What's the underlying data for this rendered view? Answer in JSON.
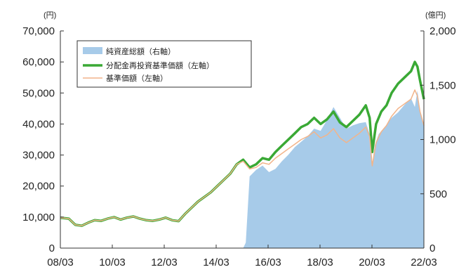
{
  "chart_data": {
    "type": "line",
    "title": "",
    "left_unit": "(円)",
    "right_unit": "(億円)",
    "left_ticks": [
      "0",
      "10,000",
      "20,000",
      "30,000",
      "40,000",
      "50,000",
      "60,000",
      "70,000"
    ],
    "right_ticks": [
      "0",
      "500",
      "1,000",
      "1,500",
      "2,000"
    ],
    "x_ticks": [
      "08/03",
      "10/03",
      "12/03",
      "14/03",
      "16/03",
      "18/03",
      "20/03",
      "22/03"
    ],
    "ylim_left": [
      0,
      70000
    ],
    "ylim_right": [
      0,
      2000
    ],
    "xlim": [
      2008.17,
      2022.25
    ],
    "legend_position": "top-left",
    "colors": {
      "net_assets": "#a7cbe9",
      "reinvested_nav": "#3aa935",
      "nav": "#f2b48a"
    },
    "series": [
      {
        "name": "純資産総額（右軸）",
        "axis": "right",
        "kind": "area",
        "x": [
          2008.17,
          2015.25,
          2015.35,
          2015.5,
          2015.75,
          2016.0,
          2016.25,
          2016.5,
          2016.75,
          2017.0,
          2017.25,
          2017.5,
          2017.75,
          2018.0,
          2018.25,
          2018.5,
          2018.75,
          2019.0,
          2019.25,
          2019.5,
          2019.75,
          2020.0,
          2020.15,
          2020.25,
          2020.35,
          2020.5,
          2020.75,
          2021.0,
          2021.25,
          2021.5,
          2021.75,
          2021.9,
          2022.0,
          2022.1,
          2022.25
        ],
        "values": [
          0,
          0,
          50,
          660,
          720,
          760,
          700,
          730,
          800,
          860,
          930,
          980,
          1030,
          1100,
          1080,
          1180,
          1300,
          1200,
          1100,
          1130,
          1150,
          1160,
          1050,
          780,
          950,
          1050,
          1120,
          1200,
          1250,
          1320,
          1380,
          1300,
          1450,
          1270,
          1120
        ]
      },
      {
        "name": "分配金再投資基準価額（左軸）",
        "axis": "left",
        "kind": "line",
        "x": [
          2008.17,
          2008.5,
          2008.75,
          2009.0,
          2009.25,
          2009.5,
          2009.75,
          2010.0,
          2010.25,
          2010.5,
          2010.75,
          2011.0,
          2011.25,
          2011.5,
          2011.75,
          2012.0,
          2012.25,
          2012.5,
          2012.75,
          2013.0,
          2013.25,
          2013.5,
          2013.75,
          2014.0,
          2014.25,
          2014.5,
          2014.75,
          2015.0,
          2015.25,
          2015.5,
          2015.75,
          2016.0,
          2016.25,
          2016.5,
          2016.75,
          2017.0,
          2017.25,
          2017.5,
          2017.75,
          2018.0,
          2018.25,
          2018.5,
          2018.75,
          2019.0,
          2019.25,
          2019.5,
          2019.75,
          2020.0,
          2020.15,
          2020.25,
          2020.4,
          2020.6,
          2020.8,
          2021.0,
          2021.25,
          2021.5,
          2021.75,
          2021.9,
          2022.0,
          2022.1,
          2022.25
        ],
        "values": [
          9800,
          9500,
          7500,
          7200,
          8200,
          9000,
          8800,
          9500,
          10000,
          9200,
          9800,
          10200,
          9500,
          9000,
          8800,
          9200,
          9800,
          9000,
          8700,
          11000,
          13000,
          15000,
          16500,
          18000,
          20000,
          22000,
          24000,
          27000,
          28500,
          26000,
          27000,
          29000,
          28500,
          31000,
          33000,
          35000,
          37000,
          39000,
          40000,
          42000,
          40000,
          41500,
          44000,
          40500,
          39000,
          41000,
          43000,
          46000,
          42000,
          31000,
          40000,
          44000,
          46000,
          50000,
          53000,
          55000,
          57000,
          60000,
          58500,
          54000,
          48000
        ]
      },
      {
        "name": "基準価額（左軸）",
        "axis": "left",
        "kind": "line",
        "x": [
          2008.17,
          2008.5,
          2008.75,
          2009.0,
          2009.25,
          2009.5,
          2009.75,
          2010.0,
          2010.25,
          2010.5,
          2010.75,
          2011.0,
          2011.25,
          2011.5,
          2011.75,
          2012.0,
          2012.25,
          2012.5,
          2012.75,
          2013.0,
          2013.25,
          2013.5,
          2013.75,
          2014.0,
          2014.25,
          2014.5,
          2014.75,
          2015.0,
          2015.25,
          2015.5,
          2015.75,
          2016.0,
          2016.25,
          2016.5,
          2016.75,
          2017.0,
          2017.25,
          2017.5,
          2017.75,
          2018.0,
          2018.25,
          2018.5,
          2018.75,
          2019.0,
          2019.25,
          2019.5,
          2019.75,
          2020.0,
          2020.15,
          2020.25,
          2020.4,
          2020.6,
          2020.8,
          2021.0,
          2021.25,
          2021.5,
          2021.75,
          2021.9,
          2022.0,
          2022.1,
          2022.25
        ],
        "values": [
          9800,
          9500,
          7500,
          7200,
          8200,
          9000,
          8800,
          9500,
          10000,
          9200,
          9800,
          10200,
          9500,
          9000,
          8800,
          9200,
          9800,
          9000,
          8700,
          11000,
          13000,
          15000,
          16500,
          18000,
          20000,
          22000,
          24000,
          27000,
          28000,
          25500,
          26000,
          27500,
          27000,
          29000,
          30500,
          32000,
          33500,
          35000,
          36000,
          37500,
          35500,
          36500,
          38500,
          35500,
          34000,
          35500,
          37000,
          39000,
          36000,
          26500,
          34000,
          37500,
          39500,
          42500,
          45000,
          46500,
          48000,
          51000,
          49000,
          44000,
          39500
        ]
      }
    ]
  }
}
